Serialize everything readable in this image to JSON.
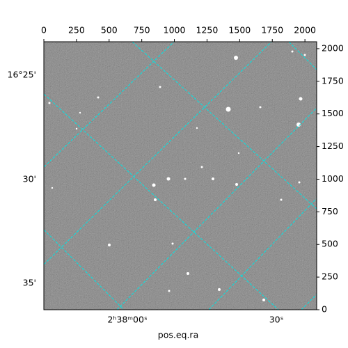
{
  "chart_data": {
    "type": "image",
    "xlabel": "pos.eq.ra",
    "xlim": [
      0,
      2090
    ],
    "ylim": [
      0,
      2053
    ],
    "xticks": [
      0,
      250,
      500,
      750,
      1000,
      1250,
      1500,
      1750,
      2000
    ],
    "yticks": [
      0,
      250,
      500,
      750,
      1000,
      1250,
      1500,
      1750,
      2000
    ],
    "dec_labels": [
      "16°25'",
      "30'",
      "35'"
    ],
    "ra_labels": [
      "2ʰ38ᵐ00ˢ",
      "30ˢ"
    ],
    "grid_color": "#00e5e5"
  }
}
